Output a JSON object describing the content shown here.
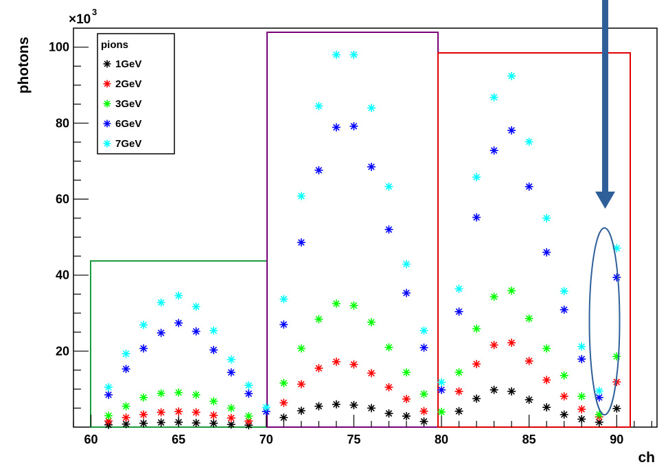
{
  "chart_data": {
    "type": "scatter",
    "xlabel": "ch",
    "ylabel": "photons",
    "y_multiplier_label": "×10",
    "y_multiplier_exp": "3",
    "xlim": [
      59,
      92.3
    ],
    "ylim": [
      0,
      105
    ],
    "x_ticks": [
      "60",
      "65",
      "70",
      "75",
      "80",
      "85",
      "90"
    ],
    "y_ticks": [
      "20",
      "40",
      "60",
      "80",
      "100"
    ],
    "legend_title": "pions",
    "legend_position": "top-left",
    "series": [
      {
        "name": "1GeV",
        "color": "#000000",
        "x": [
          61,
          62,
          63,
          64,
          65,
          66,
          67,
          68,
          69,
          71,
          72,
          73,
          74,
          75,
          76,
          77,
          78,
          79,
          81,
          82,
          83,
          84,
          85,
          86,
          87,
          88,
          89,
          90
        ],
        "values": [
          0.6,
          0.8,
          1.0,
          1.2,
          1.3,
          1.1,
          1.0,
          0.7,
          0.5,
          2.5,
          4.3,
          5.5,
          6.0,
          5.8,
          5.0,
          3.6,
          2.9,
          1.5,
          4.2,
          7.5,
          9.8,
          9.4,
          7.2,
          5.2,
          3.3,
          2.1,
          1.3,
          4.9
        ]
      },
      {
        "name": "2GeV",
        "color": "#ff0000",
        "x": [
          61,
          62,
          63,
          64,
          65,
          66,
          67,
          68,
          69,
          71,
          72,
          73,
          74,
          75,
          76,
          77,
          78,
          79,
          81,
          82,
          83,
          84,
          85,
          86,
          87,
          88,
          89,
          90
        ],
        "values": [
          1.6,
          2.5,
          3.3,
          3.9,
          4.1,
          3.9,
          3.1,
          2.4,
          1.6,
          6.4,
          11.3,
          15.5,
          17.2,
          16.5,
          14.2,
          10.5,
          7.4,
          4.2,
          9.4,
          16.6,
          21.6,
          22.2,
          17.4,
          12.4,
          8.1,
          4.7,
          2.7,
          11.9
        ]
      },
      {
        "name": "3GeV",
        "color": "#00ff00",
        "x": [
          61,
          62,
          63,
          64,
          65,
          66,
          67,
          68,
          69,
          71,
          72,
          73,
          74,
          75,
          76,
          77,
          78,
          79,
          80,
          81,
          82,
          83,
          84,
          85,
          86,
          87,
          88,
          89,
          90
        ],
        "values": [
          3.0,
          5.5,
          7.8,
          8.9,
          9.1,
          8.5,
          6.8,
          5.0,
          2.9,
          11.6,
          20.7,
          28.4,
          32.5,
          32.0,
          27.6,
          21.0,
          14.4,
          8.7,
          4.0,
          14.4,
          25.9,
          34.3,
          35.9,
          28.6,
          20.7,
          13.6,
          8.1,
          3.3,
          18.6
        ]
      },
      {
        "name": "6GeV",
        "color": "#0000ff",
        "x": [
          61,
          62,
          63,
          64,
          65,
          66,
          67,
          68,
          69,
          70,
          71,
          72,
          73,
          74,
          75,
          76,
          77,
          78,
          79,
          80,
          81,
          82,
          83,
          84,
          85,
          86,
          87,
          88,
          89,
          90
        ],
        "values": [
          8.5,
          15.3,
          20.7,
          24.8,
          27.4,
          25.2,
          20.3,
          14.4,
          8.8,
          4.1,
          27.0,
          48.6,
          67.6,
          78.9,
          79.2,
          68.5,
          52.0,
          35.3,
          20.9,
          9.8,
          30.4,
          55.2,
          72.8,
          78.1,
          63.3,
          46.0,
          30.9,
          17.9,
          7.8,
          39.4
        ]
      },
      {
        "name": "7GeV",
        "color": "#00ffff",
        "x": [
          61,
          62,
          63,
          64,
          65,
          66,
          67,
          68,
          69,
          70,
          71,
          72,
          73,
          74,
          75,
          76,
          77,
          78,
          79,
          80,
          81,
          82,
          83,
          84,
          85,
          86,
          87,
          88,
          89,
          90
        ],
        "values": [
          10.5,
          19.3,
          26.9,
          32.8,
          34.6,
          31.7,
          25.4,
          17.8,
          11.0,
          5.2,
          33.7,
          60.8,
          84.5,
          98.0,
          98.0,
          84.0,
          63.3,
          42.9,
          25.4,
          11.8,
          36.4,
          65.8,
          86.8,
          92.4,
          75.1,
          55.0,
          35.8,
          21.2,
          9.5,
          47.1
        ]
      }
    ]
  }
}
